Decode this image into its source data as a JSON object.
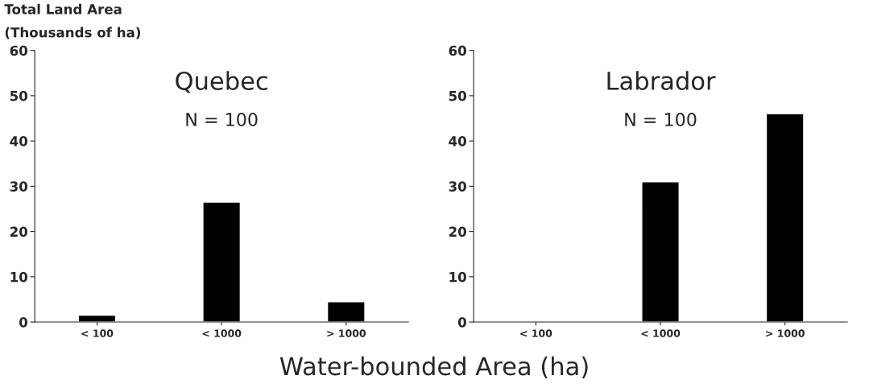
{
  "chart_data": [
    {
      "type": "bar",
      "title": "Quebec",
      "subtitle": "N = 100",
      "ylabel": "Total Land Area\n(Thousands of ha)",
      "xlabel": "Water-bounded Area (ha)",
      "categories": [
        "< 100",
        "< 1000",
        "> 1000"
      ],
      "values": [
        1.5,
        26.5,
        4.5
      ],
      "color": "#000000",
      "ylim": [
        0,
        60
      ],
      "yticks": [
        0,
        10,
        20,
        30,
        40,
        50,
        60
      ],
      "grid": false
    },
    {
      "type": "bar",
      "title": "Labrador",
      "subtitle": "N = 100",
      "categories": [
        "< 100",
        "< 1000",
        "> 1000"
      ],
      "values": [
        0.2,
        31,
        46
      ],
      "color": "#000000",
      "ylim": [
        0,
        60
      ],
      "yticks": [
        0,
        10,
        20,
        30,
        40,
        50,
        60
      ],
      "grid": false
    }
  ]
}
